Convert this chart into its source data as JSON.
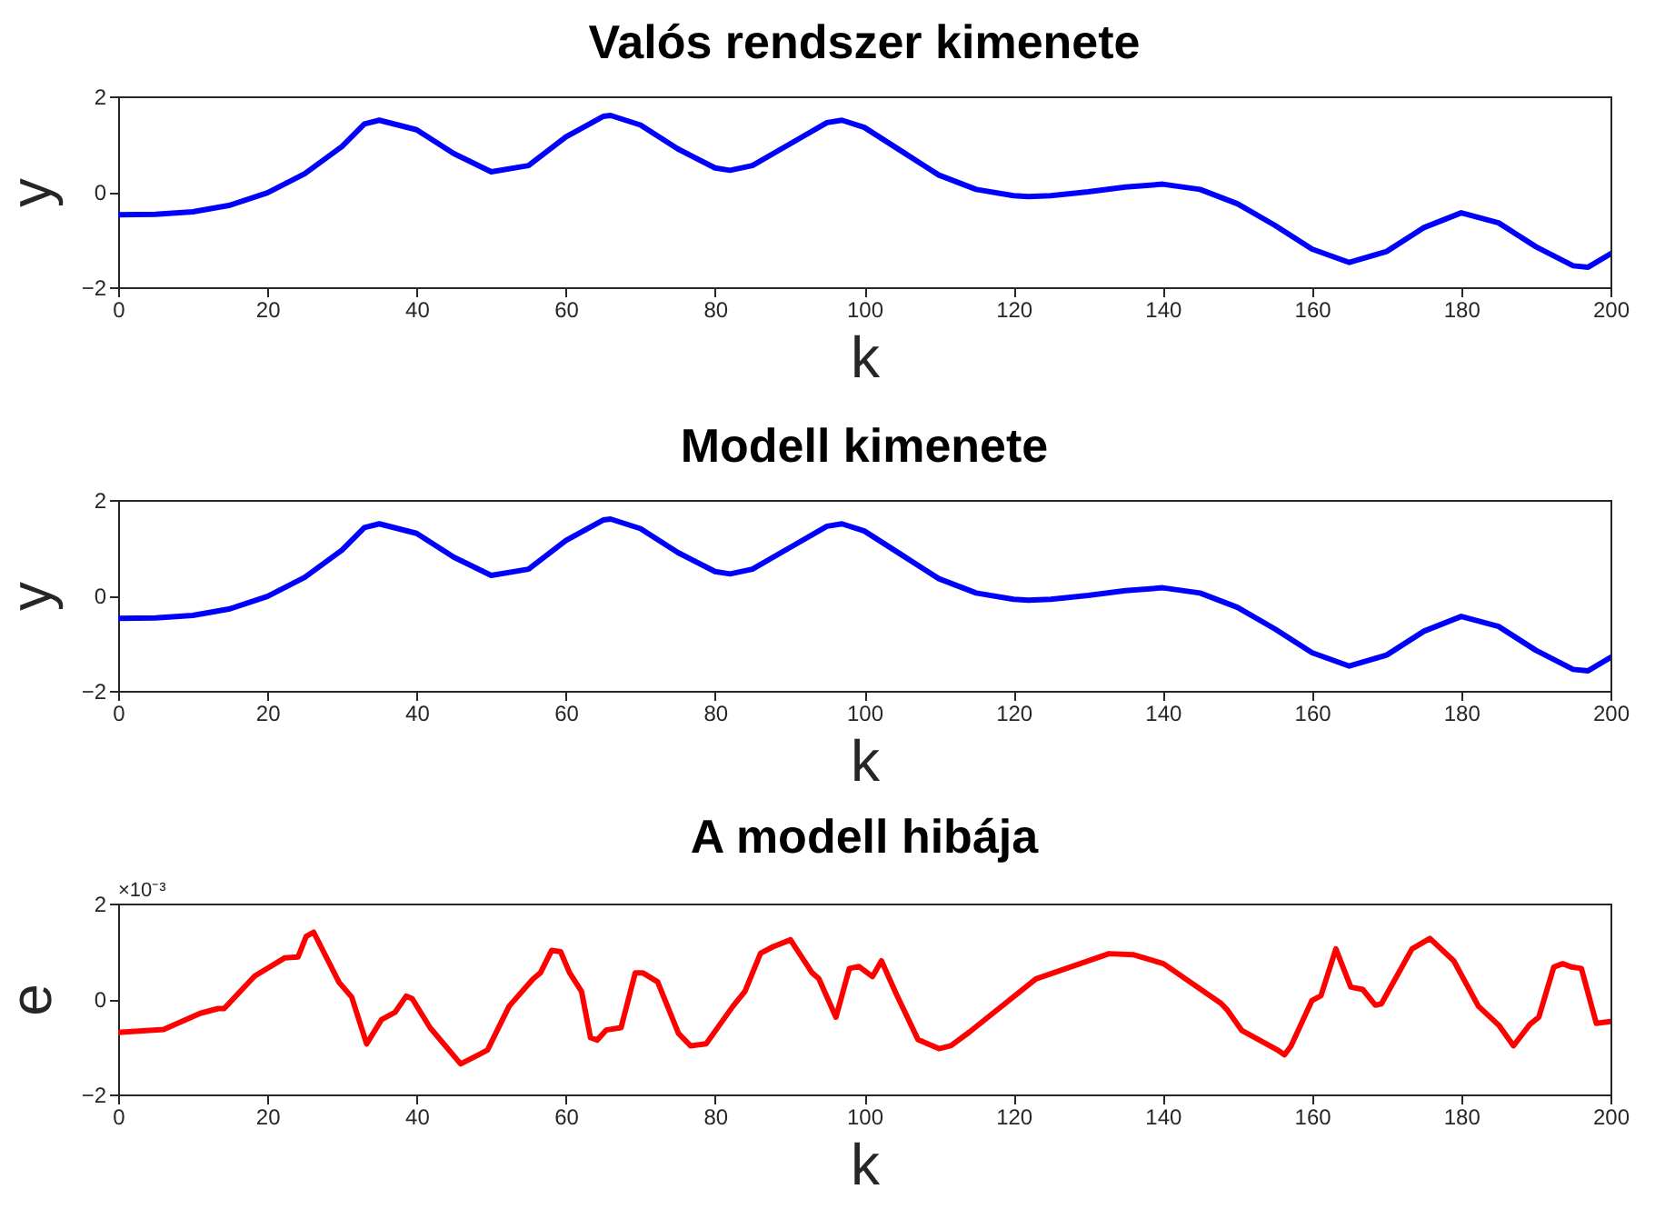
{
  "chart_data": [
    {
      "type": "line",
      "title": "Valós rendszer kimenete",
      "xlabel": "k",
      "ylabel": "y",
      "xlim": [
        0,
        200
      ],
      "xticks": [
        0,
        20,
        40,
        60,
        80,
        100,
        120,
        140,
        160,
        180,
        200
      ],
      "ylim": [
        -2,
        2
      ],
      "yticks": [
        -2,
        0,
        2
      ],
      "x": [
        0,
        5,
        10,
        15,
        20,
        25,
        30,
        33,
        35,
        40,
        45,
        50,
        55,
        60,
        65,
        66,
        70,
        75,
        80,
        82,
        85,
        90,
        95,
        97,
        100,
        105,
        110,
        115,
        120,
        122,
        125,
        130,
        135,
        140,
        145,
        150,
        155,
        160,
        165,
        170,
        175,
        180,
        185,
        190,
        195,
        197,
        200
      ],
      "series": [
        {
          "color": "#0000ff",
          "values": [
            -0.48,
            -0.47,
            -0.42,
            -0.28,
            -0.02,
            0.38,
            0.95,
            1.42,
            1.5,
            1.3,
            0.8,
            0.42,
            0.55,
            1.15,
            1.58,
            1.6,
            1.4,
            0.9,
            0.5,
            0.45,
            0.55,
            1.0,
            1.45,
            1.5,
            1.35,
            0.85,
            0.35,
            0.05,
            -0.08,
            -0.1,
            -0.08,
            0.0,
            0.1,
            0.16,
            0.05,
            -0.25,
            -0.7,
            -1.2,
            -1.48,
            -1.25,
            -0.75,
            -0.44,
            -0.65,
            -1.15,
            -1.55,
            -1.58,
            -1.3
          ]
        }
      ]
    },
    {
      "type": "line",
      "title": "Modell kimenete",
      "xlabel": "k",
      "ylabel": "y",
      "xlim": [
        0,
        200
      ],
      "xticks": [
        0,
        20,
        40,
        60,
        80,
        100,
        120,
        140,
        160,
        180,
        200
      ],
      "ylim": [
        -2,
        2
      ],
      "yticks": [
        -2,
        0,
        2
      ],
      "x": [
        0,
        5,
        10,
        15,
        20,
        25,
        30,
        33,
        35,
        40,
        45,
        50,
        55,
        60,
        65,
        66,
        70,
        75,
        80,
        82,
        85,
        90,
        95,
        97,
        100,
        105,
        110,
        115,
        120,
        122,
        125,
        130,
        135,
        140,
        145,
        150,
        155,
        160,
        165,
        170,
        175,
        180,
        185,
        190,
        195,
        197,
        200
      ],
      "series": [
        {
          "color": "#0000ff",
          "values": [
            -0.48,
            -0.47,
            -0.42,
            -0.28,
            -0.02,
            0.38,
            0.95,
            1.42,
            1.5,
            1.3,
            0.8,
            0.42,
            0.55,
            1.15,
            1.58,
            1.6,
            1.4,
            0.9,
            0.5,
            0.45,
            0.55,
            1.0,
            1.45,
            1.5,
            1.35,
            0.85,
            0.35,
            0.05,
            -0.08,
            -0.1,
            -0.08,
            0.0,
            0.1,
            0.16,
            0.05,
            -0.25,
            -0.7,
            -1.2,
            -1.48,
            -1.25,
            -0.75,
            -0.44,
            -0.65,
            -1.15,
            -1.55,
            -1.58,
            -1.3
          ]
        }
      ]
    },
    {
      "type": "line",
      "title": "A modell hibája",
      "xlabel": "k",
      "ylabel": "e",
      "xlim": [
        0,
        200
      ],
      "xticks": [
        0,
        20,
        40,
        60,
        80,
        100,
        120,
        140,
        160,
        180,
        200
      ],
      "ylim": [
        -2,
        2
      ],
      "yticks": [
        -2,
        0,
        2
      ],
      "annotations": [
        "×10⁻³"
      ],
      "x": [
        0,
        6.1,
        11,
        13.4,
        14.2,
        18.3,
        22.3,
        24.1,
        25.2,
        26.2,
        29.6,
        31.3,
        33.3,
        35.3,
        37.1,
        38.6,
        39.4,
        41.8,
        45.9,
        48.3,
        49.5,
        52.4,
        55.6,
        56.6,
        58.1,
        59.3,
        60.5,
        62.1,
        63.3,
        64.2,
        65.4,
        67.4,
        69.3,
        70.3,
        72.3,
        75.1,
        76.7,
        78.8,
        82.4,
        84,
        86.1,
        87.7,
        90.1,
        93,
        93.9,
        96.2,
        98,
        99.3,
        101.1,
        102.3,
        104.3,
        107.2,
        110,
        111.6,
        114.1,
        123,
        132.8,
        136,
        140.1,
        147.8,
        148.6,
        150.6,
        155.5,
        156.3,
        157.2,
        160,
        161.2,
        163.2,
        165.2,
        166.8,
        168.5,
        169.3,
        173.4,
        175.8,
        179,
        182.3,
        185.1,
        187,
        189.2,
        190.4,
        192.4,
        193.6,
        194.8,
        196.1,
        198.1,
        200
      ],
      "series": [
        {
          "color": "#ff0000",
          "values": [
            -0.7,
            -0.64,
            -0.3,
            -0.2,
            -0.2,
            0.48,
            0.86,
            0.88,
            1.31,
            1.4,
            0.35,
            0.04,
            -0.94,
            -0.43,
            -0.28,
            0.06,
            0.01,
            -0.6,
            -1.36,
            -1.17,
            -1.07,
            -0.15,
            0.42,
            0.55,
            1.02,
            0.99,
            0.55,
            0.16,
            -0.81,
            -0.86,
            -0.65,
            -0.6,
            0.55,
            0.55,
            0.36,
            -0.72,
            -0.98,
            -0.94,
            -0.15,
            0.16,
            0.96,
            1.09,
            1.24,
            0.55,
            0.43,
            -0.38,
            0.64,
            0.68,
            0.47,
            0.8,
            0.1,
            -0.85,
            -1.04,
            -0.98,
            -0.69,
            0.42,
            0.95,
            0.93,
            0.74,
            -0.09,
            -0.22,
            -0.66,
            -1.08,
            -1.17,
            -0.98,
            -0.03,
            0.07,
            1.05,
            0.25,
            0.2,
            -0.13,
            -0.1,
            1.05,
            1.27,
            0.8,
            -0.15,
            -0.56,
            -0.98,
            -0.53,
            -0.38,
            0.67,
            0.74,
            0.67,
            0.64,
            -0.51,
            -0.47
          ]
        }
      ]
    }
  ]
}
